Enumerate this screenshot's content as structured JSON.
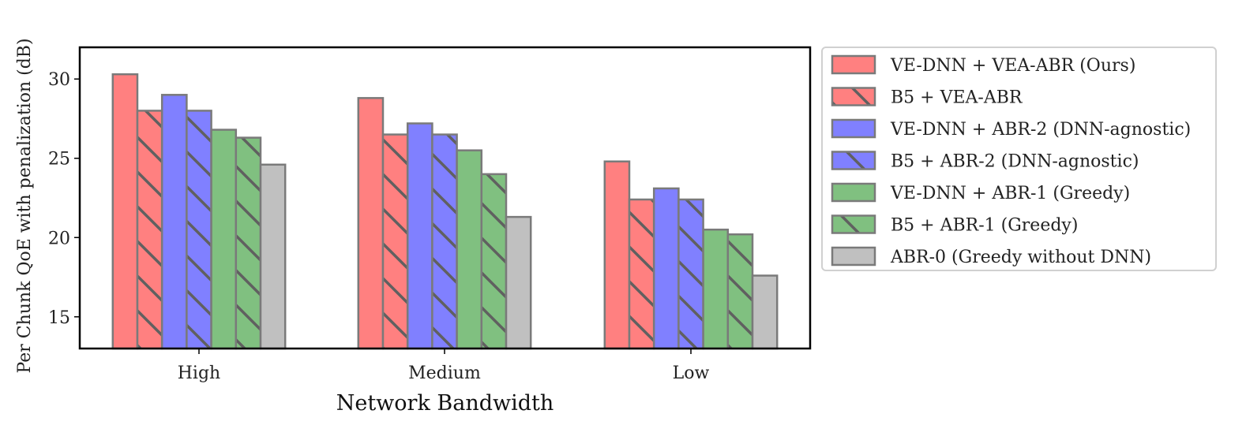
{
  "chart_data": {
    "type": "bar",
    "xlabel": "Network Bandwidth",
    "ylabel": "Per Chunk QoE with penalization (dB)",
    "categories": [
      "High",
      "Medium",
      "Low"
    ],
    "ylim": [
      13,
      32
    ],
    "yticks": [
      15,
      20,
      25,
      30
    ],
    "grid": false,
    "legend_position": "outside-right",
    "series": [
      {
        "name": "VE-DNN + VEA-ABR (Ours)",
        "color": "#ff8080",
        "hatch": false,
        "values": [
          30.3,
          28.8,
          24.8
        ]
      },
      {
        "name": "B5 + VEA-ABR",
        "color": "#ff8080",
        "hatch": true,
        "values": [
          28.0,
          26.5,
          22.4
        ]
      },
      {
        "name": "VE-DNN + ABR-2 (DNN-agnostic)",
        "color": "#8080ff",
        "hatch": false,
        "values": [
          29.0,
          27.2,
          23.1
        ]
      },
      {
        "name": "B5 + ABR-2 (DNN-agnostic)",
        "color": "#8080ff",
        "hatch": true,
        "values": [
          28.0,
          26.5,
          22.4
        ]
      },
      {
        "name": "VE-DNN + ABR-1 (Greedy)",
        "color": "#80c080",
        "hatch": false,
        "values": [
          26.8,
          25.5,
          20.5
        ]
      },
      {
        "name": "B5 + ABR-1 (Greedy)",
        "color": "#80c080",
        "hatch": true,
        "values": [
          26.3,
          24.0,
          20.2
        ]
      },
      {
        "name": "ABR-0 (Greedy without DNN)",
        "color": "#c0c0c0",
        "hatch": false,
        "values": [
          24.6,
          21.3,
          17.6
        ]
      }
    ]
  }
}
